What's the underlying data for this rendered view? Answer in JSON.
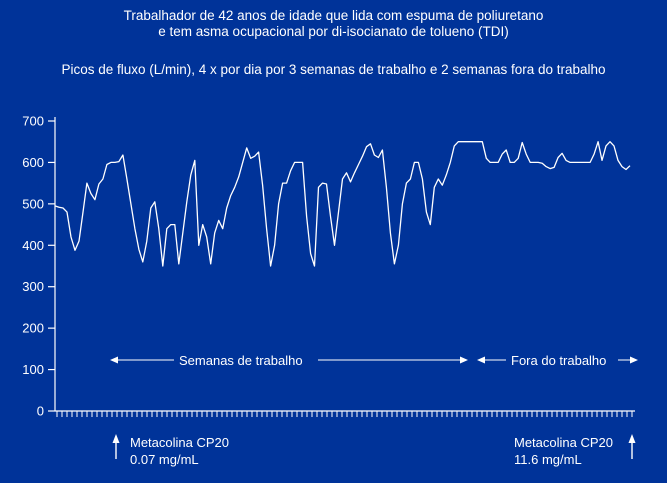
{
  "slide": {
    "title_line1": "Trabalhador de 42 anos de idade que lida com espuma de poliuretano",
    "title_line2": "e tem asma ocupacional por di-isocianato de tolueno (TDI)",
    "subtitle": "Picos de fluxo (L/min), 4 x por dia por 3 semanas de trabalho e 2 semanas fora do trabalho"
  },
  "annotations": {
    "work_weeks": "Semanas de trabalho",
    "off_work": "Fora do trabalho",
    "methacholine_start": {
      "line1": "Metacolina CP20",
      "line2": "0.07 mg/mL"
    },
    "methacholine_end": {
      "line1": "Metacolina CP20",
      "line2": "11.6 mg/mL"
    }
  },
  "colors": {
    "background": "#003399",
    "text": "#ffffff",
    "line": "#ffffff",
    "axis": "#ffffff"
  },
  "chart_data": {
    "type": "line",
    "title": "Picos de fluxo (L/min), 4 x por dia por 3 semanas de trabalho e 2 semanas fora do trabalho",
    "ylabel": "Pico de fluxo (L/min)",
    "ylim": [
      0,
      700
    ],
    "yticks": [
      0,
      100,
      200,
      300,
      400,
      500,
      600,
      700
    ],
    "grid": false,
    "legend": null,
    "sections": [
      {
        "label": "Semanas de trabalho",
        "start_index": 0,
        "end_index": 103
      },
      {
        "label": "Fora do trabalho",
        "start_index": 104,
        "end_index": 144
      }
    ],
    "events": [
      {
        "label": "Metacolina CP20 0.07 mg/mL",
        "position": "início (semanas de trabalho)"
      },
      {
        "label": "Metacolina CP20 11.6 mg/mL",
        "position": "fim (fora do trabalho)"
      }
    ],
    "series": [
      {
        "name": "Pico de fluxo (L/min)",
        "values": [
          495,
          492,
          490,
          480,
          420,
          388,
          410,
          480,
          550,
          525,
          510,
          548,
          560,
          595,
          600,
          600,
          602,
          618,
          560,
          500,
          440,
          390,
          360,
          410,
          490,
          505,
          440,
          350,
          440,
          450,
          450,
          355,
          430,
          505,
          570,
          605,
          400,
          450,
          420,
          355,
          430,
          460,
          440,
          490,
          520,
          540,
          565,
          600,
          635,
          610,
          615,
          625,
          545,
          440,
          350,
          400,
          500,
          550,
          550,
          580,
          600,
          600,
          600,
          470,
          380,
          350,
          540,
          550,
          548,
          470,
          400,
          480,
          560,
          575,
          553,
          575,
          595,
          615,
          638,
          645,
          618,
          612,
          630,
          540,
          430,
          355,
          400,
          500,
          550,
          560,
          600,
          600,
          560,
          480,
          450,
          540,
          560,
          545,
          570,
          600,
          640,
          650,
          650,
          650,
          650,
          650,
          650,
          650,
          610,
          600,
          600,
          600,
          620,
          630,
          600,
          600,
          610,
          648,
          620,
          600,
          600,
          600,
          598,
          590,
          585,
          588,
          612,
          622,
          605,
          600,
          600,
          600,
          600,
          600,
          600,
          620,
          650,
          605,
          640,
          650,
          640,
          605,
          590,
          583,
          592
        ]
      }
    ]
  }
}
